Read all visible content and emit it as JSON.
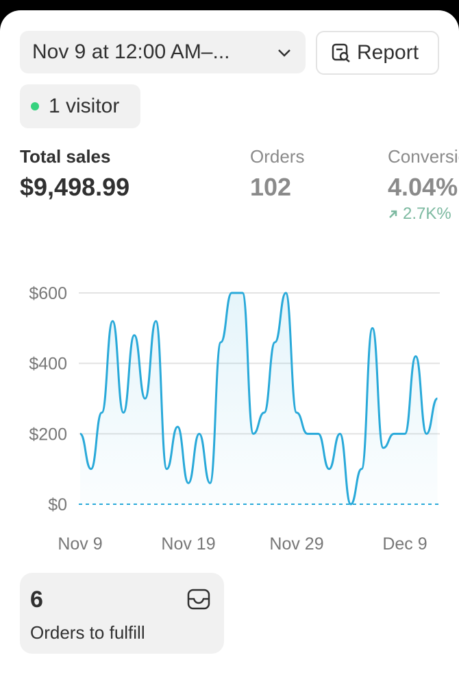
{
  "header": {
    "date_range": "Nov 9 at 12:00 AM–...",
    "report_button": "Report",
    "visitors": "1 visitor"
  },
  "metrics": [
    {
      "label": "Total sales",
      "value": "$9,498.99"
    },
    {
      "label": "Orders",
      "value": "102"
    },
    {
      "label": "Conversion rate",
      "value": "4.04%",
      "change": "2.7K%"
    }
  ],
  "chart_data": {
    "type": "line",
    "categories": [
      "Nov 9",
      null,
      null,
      null,
      null,
      null,
      null,
      null,
      null,
      null,
      "Nov 19",
      null,
      null,
      null,
      null,
      null,
      null,
      null,
      null,
      null,
      "Nov 29",
      null,
      null,
      null,
      null,
      null,
      null,
      null,
      null,
      null,
      "Dec 9",
      null,
      null,
      null
    ],
    "series": [
      {
        "name": "Total sales",
        "color": "#29a9d9",
        "values": [
          200,
          100,
          260,
          520,
          260,
          480,
          300,
          520,
          100,
          220,
          60,
          200,
          60,
          460,
          600,
          600,
          200,
          260,
          460,
          600,
          260,
          200,
          200,
          100,
          200,
          0,
          100,
          500,
          160,
          200,
          200,
          420,
          200,
          300
        ]
      }
    ],
    "ylim": [
      0,
      600
    ],
    "yticks": [
      {
        "value": 0,
        "label": "$0"
      },
      {
        "value": 200,
        "label": "$200"
      },
      {
        "value": 400,
        "label": "$400"
      },
      {
        "value": 600,
        "label": "$600"
      }
    ],
    "grid": true
  },
  "fulfill_card": {
    "count": "6",
    "label": "Orders to fulfill"
  }
}
